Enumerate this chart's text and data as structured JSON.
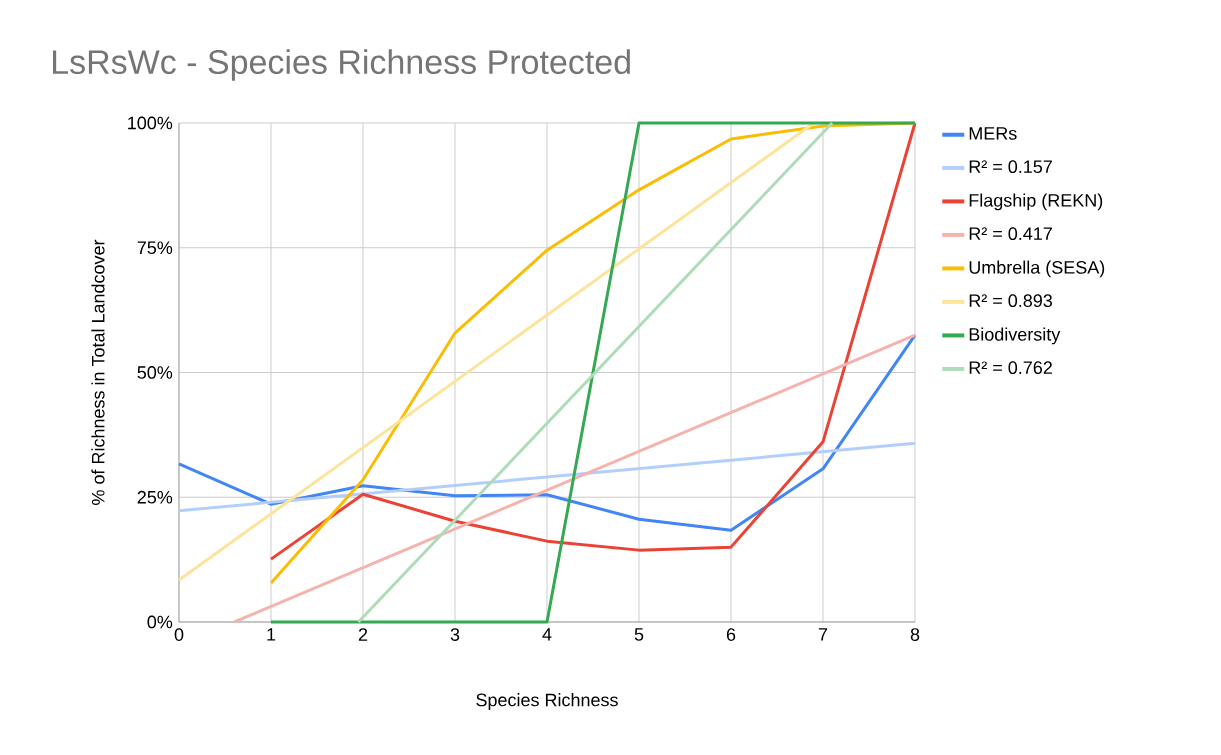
{
  "chart_data": {
    "type": "line",
    "title": "LsRsWc - Species Richness Protected",
    "xlabel": "Species Richness",
    "ylabel": "% of Richness in Total Landcover",
    "x": [
      0,
      1,
      2,
      3,
      4,
      5,
      6,
      7,
      8
    ],
    "series": [
      {
        "name": "MERs",
        "color": "#4285f4",
        "values": [
          31.7,
          23.6,
          27.3,
          25.3,
          25.5,
          20.6,
          18.4,
          30.7,
          57.5
        ]
      },
      {
        "name": "R² = 0.157",
        "color": "#b3cefb",
        "x": [
          0,
          8
        ],
        "values": [
          22.3,
          35.8
        ]
      },
      {
        "name": "Flagship (REKN)",
        "color": "#ea4335",
        "values": [
          null,
          12.6,
          25.6,
          20.2,
          16.2,
          14.4,
          15.0,
          36.1,
          100
        ]
      },
      {
        "name": "R² = 0.417",
        "color": "#f5b3ae",
        "x": [
          0.6,
          8
        ],
        "values": [
          0,
          57.5
        ]
      },
      {
        "name": "Umbrella (SESA)",
        "color": "#fbbc04",
        "values": [
          null,
          7.8,
          28.5,
          57.9,
          74.5,
          86.6,
          96.8,
          99.4,
          100
        ]
      },
      {
        "name": "R² = 0.893",
        "color": "#fde49b",
        "x": [
          0,
          6.9
        ],
        "values": [
          8.4,
          100
        ]
      },
      {
        "name": "Biodiversity",
        "color": "#34a853",
        "values": [
          null,
          0,
          0,
          0,
          0,
          100,
          100,
          100,
          100
        ]
      },
      {
        "name": "R² = 0.762",
        "color": "#aedcba",
        "x": [
          1.95,
          7.1
        ],
        "values": [
          0,
          100
        ]
      }
    ],
    "xlim": [
      0,
      8
    ],
    "ylim": [
      0,
      100
    ],
    "xticks": [
      0,
      1,
      2,
      3,
      4,
      5,
      6,
      7,
      8
    ],
    "yticks": [
      {
        "value": 0,
        "label": "0%"
      },
      {
        "value": 25,
        "label": "25%"
      },
      {
        "value": 50,
        "label": "50%"
      },
      {
        "value": 75,
        "label": "75%"
      },
      {
        "value": 100,
        "label": "100%"
      }
    ],
    "grid": true,
    "legend": "right"
  }
}
